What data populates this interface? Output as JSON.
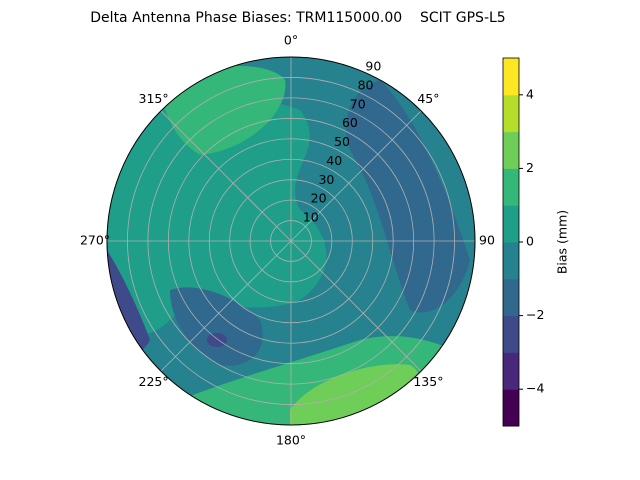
{
  "chart_data": {
    "type": "polar_contour",
    "title": "Delta Antenna Phase Biases: TRM115000.00    SCIT GPS-L5",
    "theta_ticks": [
      {
        "value": 0,
        "label": "0°"
      },
      {
        "value": 45,
        "label": "45°"
      },
      {
        "value": 90,
        "label": "90"
      },
      {
        "value": 135,
        "label": "135°"
      },
      {
        "value": 180,
        "label": "180°"
      },
      {
        "value": 225,
        "label": "225°"
      },
      {
        "value": 270,
        "label": "270°"
      },
      {
        "value": 315,
        "label": "315°"
      }
    ],
    "rlim": [
      0,
      90
    ],
    "r_ticks": [
      10,
      20,
      30,
      40,
      50,
      60,
      70,
      80,
      90
    ],
    "levels": [
      -5,
      -4,
      -3,
      -2,
      -1,
      0,
      1,
      2,
      3,
      4,
      5
    ],
    "colors": [
      "#440154",
      "#482878",
      "#3e4a89",
      "#31688e",
      "#26828e",
      "#1f9e89",
      "#35b779",
      "#6ece58",
      "#b5de2b",
      "#fde725"
    ],
    "colorbar": {
      "label": "Bias (mm)",
      "ticks": [
        {
          "value": -4,
          "label": "−4"
        },
        {
          "value": -2,
          "label": "−2"
        },
        0,
        2,
        4
      ]
    },
    "grid": true
  }
}
